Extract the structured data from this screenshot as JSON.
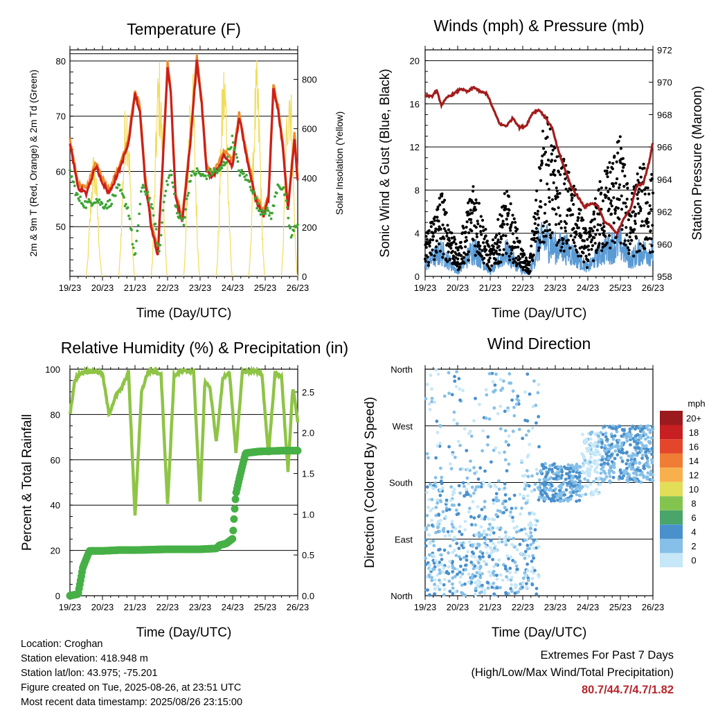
{
  "x_ticks": [
    "19/23",
    "20/23",
    "21/23",
    "22/23",
    "23/23",
    "24/23",
    "25/23",
    "26/23"
  ],
  "chart_data": [
    {
      "type": "line",
      "title": "Temperature (F)",
      "xlabel": "Time (Day/UTC)",
      "ylabel": "2m & 9m T (Red, Orange) & 2m Td (Green)",
      "y2label": "Solar Insolation (Yellow)",
      "ylim": [
        41,
        82
      ],
      "y_ticks": [
        "50",
        "60",
        "70",
        "80"
      ],
      "y2lim": [
        0,
        920
      ],
      "y2_ticks": [
        "0",
        "200",
        "400",
        "600",
        "800"
      ],
      "series": [
        {
          "name": "2m T",
          "color": "#cc1f1a",
          "x": [
            0,
            0.25,
            0.5,
            0.8,
            1,
            1.2,
            1.5,
            1.8,
            2,
            2.15,
            2.3,
            2.5,
            2.7,
            2.85,
            3,
            3.1,
            3.25,
            3.45,
            3.7,
            3.9,
            4.05,
            4.2,
            4.35,
            4.5,
            4.75,
            5,
            5.2,
            5.45,
            5.7,
            5.95,
            6.1,
            6.25,
            6.4,
            6.55,
            6.7,
            6.9,
            7
          ],
          "values": [
            65,
            57,
            56,
            61,
            58,
            56,
            60,
            65,
            74,
            71,
            59,
            50,
            45,
            61,
            79,
            74,
            55,
            51,
            65,
            80,
            72,
            60,
            59,
            60,
            63,
            61,
            70,
            62,
            55,
            52,
            55,
            75,
            71,
            64,
            53,
            66,
            58
          ]
        },
        {
          "name": "Td",
          "color": "#3fa535",
          "x": [
            0,
            0.25,
            0.5,
            0.8,
            1,
            1.2,
            1.5,
            1.8,
            2,
            2.2,
            2.4,
            2.6,
            2.75,
            2.9,
            3.1,
            3.3,
            3.5,
            3.7,
            3.9,
            4.1,
            4.4,
            4.6,
            4.8,
            5,
            5.2,
            5.4,
            5.6,
            5.8,
            6,
            6.2,
            6.4,
            6.6,
            6.8,
            7
          ],
          "values": [
            60,
            55,
            54,
            55,
            54,
            54,
            57,
            53,
            44,
            57,
            56,
            51,
            45,
            56,
            60,
            52,
            51,
            59,
            60,
            59,
            60,
            60,
            62,
            66,
            60,
            59,
            57,
            53,
            53,
            52,
            58,
            56,
            48,
            51
          ]
        },
        {
          "name": "Solar",
          "color": "#f2dc5a",
          "days_peak": [
            520,
            760,
            900,
            880,
            900,
            880,
            900
          ]
        }
      ]
    },
    {
      "type": "scatter",
      "title": "Winds (mph) & Pressure (mb)",
      "xlabel": "Time (Day/UTC)",
      "ylabel": "Sonic Wind & Gust (Blue, Black)",
      "y2label": "Station Pressure (Maroon)",
      "ylim": [
        0,
        21
      ],
      "y_ticks": [
        "0",
        "4",
        "8",
        "12",
        "16",
        "20"
      ],
      "y2lim": [
        958,
        972
      ],
      "y2_ticks": [
        "958",
        "960",
        "962",
        "964",
        "966",
        "968",
        "970",
        "972"
      ],
      "pressure": {
        "color": "#a31c1c",
        "x": [
          0,
          0.2,
          0.35,
          0.5,
          0.7,
          0.9,
          1.1,
          1.3,
          1.5,
          1.7,
          1.9,
          2.1,
          2.3,
          2.5,
          2.7,
          2.9,
          3.1,
          3.3,
          3.5,
          3.7,
          3.9,
          4.1,
          4.3,
          4.5,
          4.7,
          4.9,
          5.1,
          5.3,
          5.5,
          5.7,
          5.9,
          6.1,
          6.3,
          6.5,
          6.7,
          6.9,
          7
        ],
        "values": [
          969.2,
          969.1,
          969.5,
          968.6,
          969.1,
          969.3,
          969.6,
          969.4,
          969.7,
          969.4,
          969.3,
          968.3,
          967.4,
          967.3,
          967.8,
          967.2,
          967.3,
          968.1,
          968.3,
          967.8,
          967.2,
          965.7,
          964.6,
          963.5,
          962.9,
          962.3,
          962.5,
          962.4,
          961.4,
          961.1,
          960.6,
          961.6,
          962.1,
          963.6,
          963.7,
          965.2,
          966.3
        ]
      },
      "wind_envelope": {
        "x": [
          0,
          0.5,
          1,
          1.25,
          1.5,
          2,
          2.5,
          3,
          3.2,
          3.5,
          3.7,
          4,
          4.3,
          4.6,
          5,
          5.3,
          5.6,
          6,
          6.3,
          6.6,
          7
        ],
        "gust": [
          3,
          7,
          2,
          5,
          8,
          2,
          7,
          2,
          1,
          9,
          13,
          10,
          9,
          7,
          3,
          7,
          9,
          11,
          6,
          9,
          8
        ],
        "wind": [
          1.5,
          3,
          0.5,
          2,
          3.5,
          0.5,
          3,
          0.5,
          0.3,
          4,
          4.5,
          3.5,
          3.5,
          2.5,
          1,
          2.5,
          3.5,
          4,
          2,
          3,
          3
        ]
      }
    },
    {
      "type": "line",
      "title": "Relative Humidity (%) & Precipitation (in)",
      "xlabel": "Time (Day/UTC)",
      "ylabel": "Percent & Total Rainfall",
      "ylim": [
        0,
        100
      ],
      "y_ticks": [
        "0",
        "20",
        "40",
        "60",
        "80",
        "100"
      ],
      "y2lim": [
        0,
        2.78
      ],
      "y2_ticks": [
        "0.0",
        "0.5",
        "1.0",
        "1.5",
        "2.0",
        "2.5"
      ],
      "rh": {
        "color": "#8fc446",
        "x": [
          0,
          0.15,
          0.3,
          0.5,
          0.8,
          1,
          1.2,
          1.4,
          1.6,
          1.8,
          2,
          2.2,
          2.4,
          2.6,
          2.8,
          3,
          3.2,
          3.4,
          3.6,
          3.8,
          4,
          4.15,
          4.3,
          4.5,
          4.7,
          4.9,
          5.1,
          5.3,
          5.5,
          5.7,
          5.9,
          6.1,
          6.3,
          6.5,
          6.7,
          6.85,
          7
        ],
        "values": [
          80,
          95,
          98,
          99,
          99,
          98,
          80,
          88,
          92,
          99,
          35,
          90,
          99,
          99,
          98,
          40,
          97,
          99,
          99,
          99,
          42,
          95,
          92,
          68,
          96,
          99,
          63,
          99,
          99,
          99,
          98,
          62,
          98,
          97,
          55,
          92,
          77
        ]
      },
      "precip": {
        "color": "#46b046",
        "x": [
          0,
          0.25,
          0.4,
          0.6,
          1,
          1.5,
          2,
          3,
          4,
          4.5,
          4.6,
          4.8,
          5,
          5.05,
          5.1,
          5.2,
          5.4,
          5.8,
          6.5,
          7
        ],
        "values": [
          0,
          0.02,
          0.35,
          0.55,
          0.55,
          0.56,
          0.56,
          0.57,
          0.57,
          0.58,
          0.62,
          0.64,
          0.7,
          1.0,
          1.25,
          1.43,
          1.75,
          1.77,
          1.78,
          1.78
        ]
      }
    },
    {
      "type": "scatter",
      "title": "Wind Direction",
      "xlabel": "Time (Day/UTC)",
      "ylabel": "Direction (Colored By Speed)",
      "y_ticks": [
        "North",
        "East",
        "South",
        "West",
        "North"
      ],
      "legend_title": "mph",
      "legend_labels": [
        "0",
        "2",
        "4",
        "6",
        "8",
        "10",
        "12",
        "14",
        "16",
        "18",
        "20+"
      ],
      "legend_colors": [
        "#c6e7f7",
        "#86c0e8",
        "#4a90cc",
        "#4aa56b",
        "#83c44f",
        "#e2de58",
        "#f7b04c",
        "#ef7d34",
        "#e3462b",
        "#c71f22",
        "#9a1a1e"
      ]
    }
  ],
  "footer": {
    "location": "Location: Croghan",
    "elevation": "Station elevation: 418.948 m",
    "latlon": "Station lat/lon: 43.975; -75.201",
    "created": "Figure created on Tue, 2025-08-26, at 23:51 UTC",
    "recent": "Most recent data timestamp: 2025/08/26 23:15:00"
  },
  "extremes": {
    "title": "Extremes For Past 7 Days",
    "subtitle": "(High/Low/Max Wind/Total Precipitation)",
    "values": "80.7/44.7/4.7/1.82"
  }
}
